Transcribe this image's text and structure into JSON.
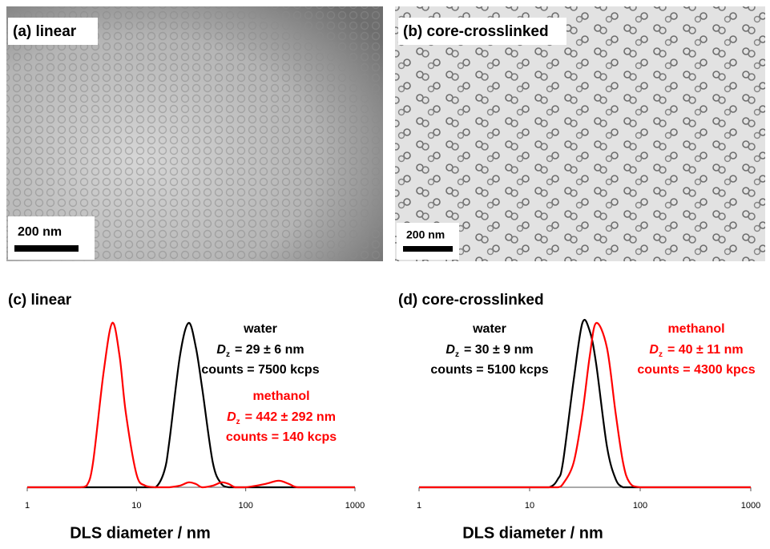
{
  "panels": [
    {
      "label": "(a) linear",
      "scale_bar": "200 nm"
    },
    {
      "label": "(b) core-crosslinked",
      "scale_bar": "200 nm"
    }
  ],
  "chart_data": [
    {
      "type": "line",
      "title": "(c) linear",
      "x_label": "DLS diameter / nm",
      "x_scale": "log",
      "xlim": [
        1,
        1000
      ],
      "xticks": [
        1,
        10,
        100,
        1000
      ],
      "ylim": [
        0,
        100
      ],
      "x": [
        1,
        2,
        3,
        3.5,
        4,
        5,
        6,
        7,
        8,
        10,
        12,
        15,
        18,
        20,
        25,
        30,
        35,
        40,
        50,
        60,
        70,
        80,
        100,
        150,
        200,
        250,
        300,
        500,
        1000
      ],
      "series": [
        {
          "name": "water",
          "color": "#000000",
          "symbol": "D",
          "subscript": "z",
          "size": "= 29 ± 6 nm",
          "counts": "counts = 7500 kcps",
          "values": [
            0,
            0,
            0,
            0,
            0,
            0,
            0,
            0,
            0,
            0,
            0,
            0,
            10,
            28,
            80,
            100,
            85,
            60,
            15,
            2,
            0,
            0,
            0,
            0,
            0,
            0,
            0,
            0,
            0
          ]
        },
        {
          "name": "methanol",
          "color": "#ff0000",
          "symbol": "D",
          "subscript": "z",
          "size": "= 442 ± 292 nm",
          "counts": "counts = 140 kcps",
          "values": [
            0,
            0,
            0,
            1,
            15,
            70,
            100,
            80,
            45,
            8,
            1,
            0,
            0,
            0,
            1,
            3,
            2,
            0,
            1,
            3,
            2,
            0,
            0,
            2,
            4,
            2,
            0,
            0,
            0
          ]
        }
      ]
    },
    {
      "type": "line",
      "title": "(d) core-crosslinked",
      "x_label": "DLS diameter / nm",
      "x_scale": "log",
      "xlim": [
        1,
        1000
      ],
      "xticks": [
        1,
        10,
        100,
        1000
      ],
      "ylim": [
        0,
        100
      ],
      "x": [
        1,
        2,
        5,
        10,
        15,
        18,
        20,
        25,
        30,
        35,
        40,
        50,
        60,
        70,
        80,
        100,
        200,
        500,
        1000
      ],
      "series": [
        {
          "name": "water",
          "color": "#000000",
          "symbol": "D",
          "subscript": "z",
          "size": "= 30 ± 9 nm",
          "counts": "counts = 5100 kcps",
          "values": [
            0,
            0,
            0,
            0,
            0,
            5,
            15,
            65,
            100,
            95,
            75,
            25,
            5,
            0,
            0,
            0,
            0,
            0,
            0
          ]
        },
        {
          "name": "methanol",
          "color": "#ff0000",
          "symbol": "D",
          "subscript": "z",
          "size": "= 40 ± 11 nm",
          "counts": "counts = 4300 kpcs",
          "values": [
            0,
            0,
            0,
            0,
            0,
            0,
            2,
            15,
            45,
            80,
            100,
            85,
            45,
            15,
            3,
            0,
            0,
            0,
            0
          ]
        }
      ]
    }
  ]
}
